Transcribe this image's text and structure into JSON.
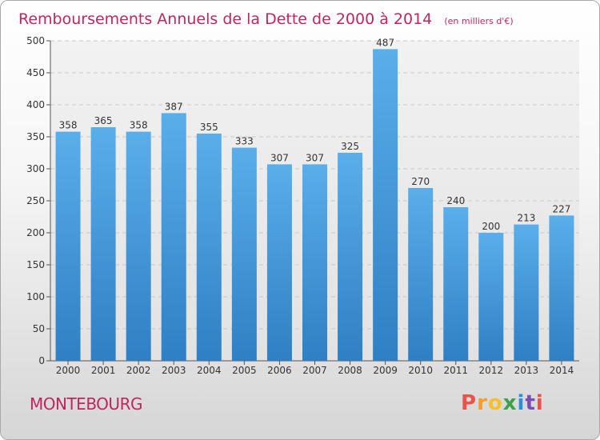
{
  "chart_data": {
    "type": "bar",
    "title": "Remboursements Annuels de la Dette de 2000 à 2014",
    "subtitle": "(en milliers d'€)",
    "categories": [
      "2000",
      "2001",
      "2002",
      "2003",
      "2004",
      "2005",
      "2006",
      "2007",
      "2008",
      "2009",
      "2010",
      "2011",
      "2012",
      "2013",
      "2014"
    ],
    "values": [
      358,
      365,
      358,
      387,
      355,
      333,
      307,
      307,
      325,
      487,
      270,
      240,
      200,
      213,
      227
    ],
    "ylim": [
      0,
      500
    ],
    "yticks": [
      0,
      50,
      100,
      150,
      200,
      250,
      300,
      350,
      400,
      450,
      500
    ],
    "grid": true,
    "bar_color_top": "#5aaeea",
    "bar_color_bottom": "#2f7fc4"
  },
  "footer": {
    "town": "MONTEBOURG",
    "logo_letters": [
      "P",
      "r",
      "o",
      "x",
      "i",
      "t",
      "i"
    ],
    "logo_colors": [
      "#e8534a",
      "#f2a02b",
      "#f2c12b",
      "#3aa24a",
      "#2b8fd8",
      "#7a4fb0",
      "#e8534a"
    ]
  }
}
